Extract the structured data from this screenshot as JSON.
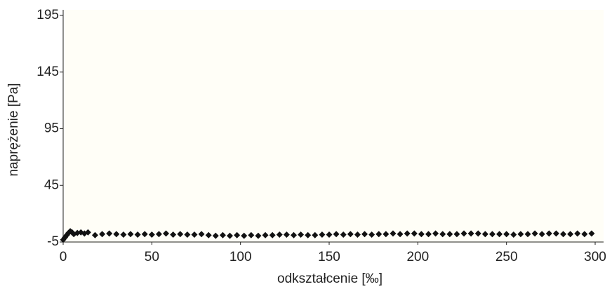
{
  "chart_data": {
    "type": "scatter",
    "xlabel": "odkształcenie [‰]",
    "ylabel": "naprężenie [Pa]",
    "x": [
      0,
      1,
      2,
      3,
      4,
      5,
      6,
      8,
      10,
      12,
      14,
      18,
      22,
      26,
      30,
      34,
      38,
      42,
      46,
      50,
      54,
      58,
      62,
      66,
      70,
      74,
      78,
      82,
      86,
      90,
      94,
      98,
      102,
      106,
      110,
      114,
      118,
      122,
      126,
      130,
      134,
      138,
      142,
      146,
      150,
      154,
      158,
      162,
      166,
      170,
      174,
      178,
      182,
      186,
      190,
      194,
      198,
      202,
      206,
      210,
      214,
      218,
      222,
      226,
      230,
      234,
      238,
      242,
      246,
      250,
      254,
      258,
      262,
      266,
      270,
      274,
      278,
      282,
      286,
      290,
      294,
      298
    ],
    "values": [
      -3,
      -1,
      1,
      3,
      4.5,
      3.5,
      2,
      3,
      3.5,
      2.5,
      3.5,
      1,
      2,
      2.5,
      2,
      1.5,
      2,
      1.5,
      2,
      1.5,
      2,
      2.5,
      1.5,
      2,
      1.5,
      1.5,
      2,
      1,
      0.5,
      1,
      0.5,
      1,
      0.5,
      1,
      0.5,
      1,
      1,
      1.5,
      1.5,
      1,
      1.5,
      1,
      1,
      1.5,
      1.5,
      2,
      1.5,
      2,
      1.5,
      2,
      1.5,
      2,
      2,
      2.5,
      2,
      2.5,
      2.5,
      2,
      2,
      2.5,
      2,
      2,
      2,
      2.5,
      2.5,
      2.5,
      2,
      2,
      2,
      2,
      1.5,
      2,
      2,
      2.5,
      2,
      2.5,
      2.5,
      2,
      2,
      2.5,
      2,
      2.5
    ],
    "color": "#111111",
    "xlim": [
      0,
      300
    ],
    "xticks": [
      0,
      50,
      100,
      150,
      200,
      250,
      300
    ],
    "ylim": [
      -5,
      195
    ],
    "yticks": [
      -5,
      45,
      95,
      145,
      195
    ]
  }
}
